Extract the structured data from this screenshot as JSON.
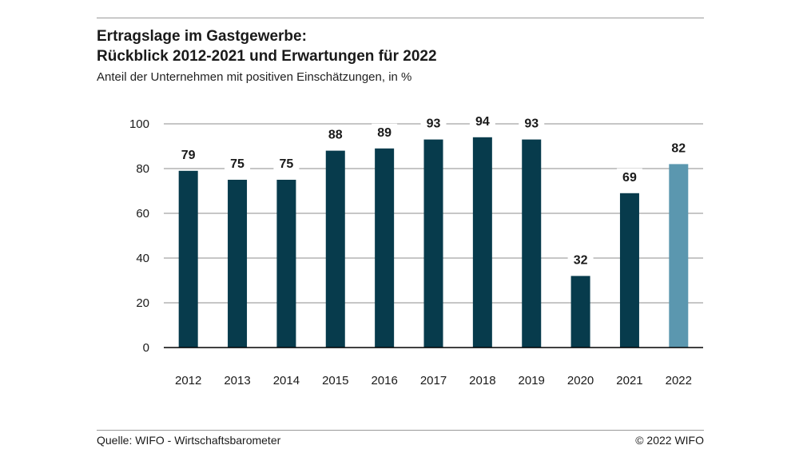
{
  "header": {
    "title_line1": "Ertragslage im Gastgewerbe:",
    "title_line2": "Rückblick 2012-2021 und Erwartungen für 2022",
    "subtitle": "Anteil der Unternehmen mit positiven Einschätzungen, in %"
  },
  "footer": {
    "source": "Quelle: WIFO - Wirtschaftsbarometer",
    "copyright": "© 2022 WIFO"
  },
  "chart_data": {
    "type": "bar",
    "title": "Ertragslage im Gastgewerbe: Rückblick 2012-2021 und Erwartungen für 2022",
    "subtitle": "Anteil der Unternehmen mit positiven Einschätzungen, in %",
    "xlabel": "",
    "ylabel": "",
    "categories": [
      "2012",
      "2013",
      "2014",
      "2015",
      "2016",
      "2017",
      "2018",
      "2019",
      "2020",
      "2021",
      "2022"
    ],
    "values": [
      79,
      75,
      75,
      88,
      89,
      93,
      94,
      93,
      32,
      69,
      82
    ],
    "ylim": [
      0,
      100
    ],
    "yticks": [
      0,
      20,
      40,
      60,
      80,
      100
    ],
    "grid": true,
    "data_labels": true,
    "colors": {
      "actual": "#073b4c",
      "expected": "#5b97af",
      "grid": "#8c8c8c"
    },
    "highlight_category": "2022"
  }
}
